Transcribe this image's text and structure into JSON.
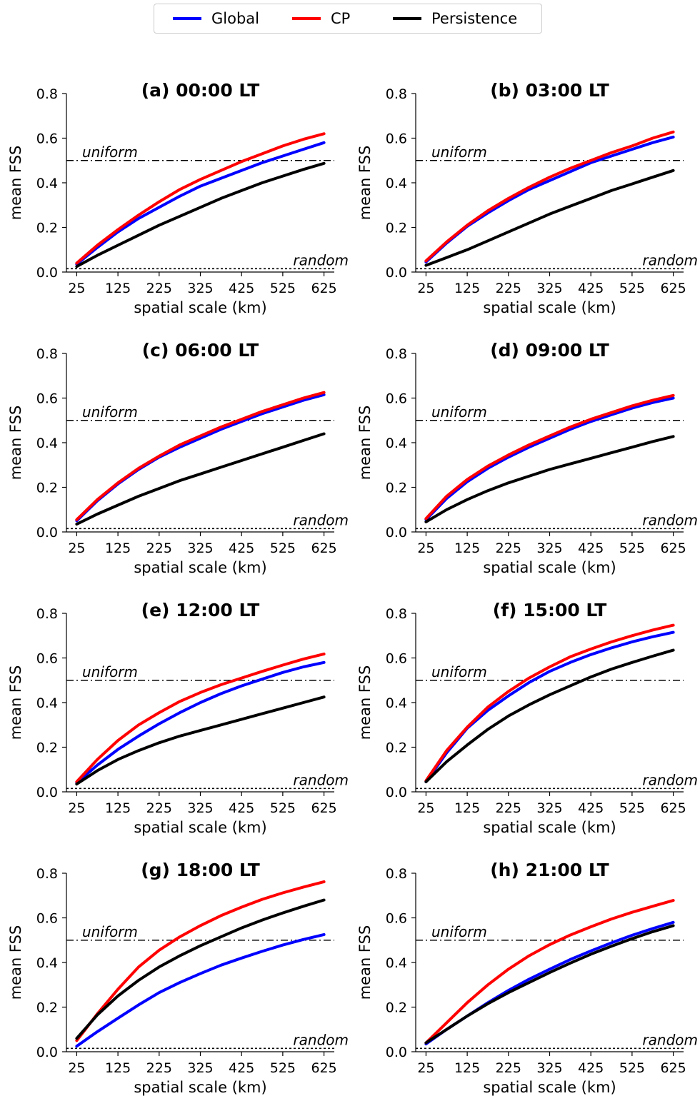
{
  "legend": [
    {
      "label": "Global",
      "color": "#0000ff"
    },
    {
      "label": "CP",
      "color": "#ff0000"
    },
    {
      "label": "Persistence",
      "color": "#000000"
    }
  ],
  "chart_data": [
    {
      "type": "line",
      "title": "(a) 00:00 LT",
      "xlabel": "spatial scale (km)",
      "ylabel": "mean FSS",
      "x": [
        25,
        75,
        125,
        175,
        225,
        275,
        325,
        375,
        425,
        475,
        525,
        575,
        625
      ],
      "xticks": [
        "25",
        "125",
        "225",
        "325",
        "425",
        "525",
        "625"
      ],
      "yticks": [
        "0.0",
        "0.2",
        "0.4",
        "0.6",
        "0.8"
      ],
      "ylim": [
        0,
        0.8
      ],
      "series": [
        {
          "name": "Global",
          "color": "#0000ff",
          "values": [
            0.035,
            0.11,
            0.18,
            0.24,
            0.29,
            0.34,
            0.385,
            0.42,
            0.455,
            0.49,
            0.52,
            0.55,
            0.58
          ]
        },
        {
          "name": "CP",
          "color": "#ff0000",
          "values": [
            0.04,
            0.12,
            0.19,
            0.255,
            0.315,
            0.37,
            0.415,
            0.455,
            0.495,
            0.53,
            0.565,
            0.595,
            0.62
          ]
        },
        {
          "name": "Persistence",
          "color": "#000000",
          "values": [
            0.025,
            0.075,
            0.12,
            0.165,
            0.21,
            0.25,
            0.29,
            0.33,
            0.365,
            0.4,
            0.43,
            0.46,
            0.487
          ]
        }
      ],
      "reference_lines": [
        {
          "label": "uniform",
          "y": 0.5,
          "style": "dashdot"
        },
        {
          "label": "random",
          "y": 0.015,
          "style": "dotted"
        }
      ]
    },
    {
      "type": "line",
      "title": "(b) 03:00 LT",
      "xlabel": "spatial scale (km)",
      "ylabel": "mean FSS",
      "x": [
        25,
        75,
        125,
        175,
        225,
        275,
        325,
        375,
        425,
        475,
        525,
        575,
        625
      ],
      "xticks": [
        "25",
        "125",
        "225",
        "325",
        "425",
        "525",
        "625"
      ],
      "yticks": [
        "0.0",
        "0.2",
        "0.4",
        "0.6",
        "0.8"
      ],
      "ylim": [
        0,
        0.8
      ],
      "series": [
        {
          "name": "Global",
          "color": "#0000ff",
          "values": [
            0.045,
            0.13,
            0.205,
            0.265,
            0.32,
            0.37,
            0.41,
            0.45,
            0.49,
            0.52,
            0.55,
            0.58,
            0.605
          ]
        },
        {
          "name": "CP",
          "color": "#ff0000",
          "values": [
            0.05,
            0.135,
            0.21,
            0.275,
            0.33,
            0.38,
            0.425,
            0.465,
            0.5,
            0.535,
            0.565,
            0.6,
            0.628
          ]
        },
        {
          "name": "Persistence",
          "color": "#000000",
          "values": [
            0.03,
            0.065,
            0.1,
            0.14,
            0.18,
            0.22,
            0.26,
            0.295,
            0.33,
            0.365,
            0.395,
            0.425,
            0.455
          ]
        }
      ],
      "reference_lines": [
        {
          "label": "uniform",
          "y": 0.5,
          "style": "dashdot"
        },
        {
          "label": "random",
          "y": 0.015,
          "style": "dotted"
        }
      ]
    },
    {
      "type": "line",
      "title": "(c) 06:00 LT",
      "xlabel": "spatial scale (km)",
      "ylabel": "mean FSS",
      "x": [
        25,
        75,
        125,
        175,
        225,
        275,
        325,
        375,
        425,
        475,
        525,
        575,
        625
      ],
      "xticks": [
        "25",
        "125",
        "225",
        "325",
        "425",
        "525",
        "625"
      ],
      "yticks": [
        "0.0",
        "0.2",
        "0.4",
        "0.6",
        "0.8"
      ],
      "ylim": [
        0,
        0.8
      ],
      "series": [
        {
          "name": "Global",
          "color": "#0000ff",
          "values": [
            0.05,
            0.14,
            0.215,
            0.28,
            0.335,
            0.38,
            0.42,
            0.46,
            0.495,
            0.53,
            0.56,
            0.59,
            0.615
          ]
        },
        {
          "name": "CP",
          "color": "#ff0000",
          "values": [
            0.055,
            0.145,
            0.22,
            0.285,
            0.34,
            0.39,
            0.43,
            0.47,
            0.505,
            0.54,
            0.57,
            0.6,
            0.625
          ]
        },
        {
          "name": "Persistence",
          "color": "#000000",
          "values": [
            0.035,
            0.08,
            0.12,
            0.16,
            0.195,
            0.23,
            0.26,
            0.29,
            0.32,
            0.35,
            0.38,
            0.41,
            0.44
          ]
        }
      ],
      "reference_lines": [
        {
          "label": "uniform",
          "y": 0.5,
          "style": "dashdot"
        },
        {
          "label": "random",
          "y": 0.015,
          "style": "dotted"
        }
      ]
    },
    {
      "type": "line",
      "title": "(d) 09:00 LT",
      "xlabel": "spatial scale (km)",
      "ylabel": "mean FSS",
      "x": [
        25,
        75,
        125,
        175,
        225,
        275,
        325,
        375,
        425,
        475,
        525,
        575,
        625
      ],
      "xticks": [
        "25",
        "125",
        "225",
        "325",
        "425",
        "525",
        "625"
      ],
      "yticks": [
        "0.0",
        "0.2",
        "0.4",
        "0.6",
        "0.8"
      ],
      "ylim": [
        0,
        0.8
      ],
      "series": [
        {
          "name": "Global",
          "color": "#0000ff",
          "values": [
            0.055,
            0.15,
            0.225,
            0.285,
            0.335,
            0.38,
            0.42,
            0.46,
            0.495,
            0.525,
            0.555,
            0.58,
            0.6
          ]
        },
        {
          "name": "CP",
          "color": "#ff0000",
          "values": [
            0.06,
            0.16,
            0.235,
            0.295,
            0.345,
            0.39,
            0.43,
            0.47,
            0.505,
            0.535,
            0.565,
            0.59,
            0.612
          ]
        },
        {
          "name": "Persistence",
          "color": "#000000",
          "values": [
            0.045,
            0.1,
            0.145,
            0.185,
            0.22,
            0.25,
            0.28,
            0.305,
            0.33,
            0.355,
            0.38,
            0.405,
            0.428
          ]
        }
      ],
      "reference_lines": [
        {
          "label": "uniform",
          "y": 0.5,
          "style": "dashdot"
        },
        {
          "label": "random",
          "y": 0.015,
          "style": "dotted"
        }
      ]
    },
    {
      "type": "line",
      "title": "(e) 12:00 LT",
      "xlabel": "spatial scale (km)",
      "ylabel": "mean FSS",
      "x": [
        25,
        75,
        125,
        175,
        225,
        275,
        325,
        375,
        425,
        475,
        525,
        575,
        625
      ],
      "xticks": [
        "25",
        "125",
        "225",
        "325",
        "425",
        "525",
        "625"
      ],
      "yticks": [
        "0.0",
        "0.2",
        "0.4",
        "0.6",
        "0.8"
      ],
      "ylim": [
        0,
        0.8
      ],
      "series": [
        {
          "name": "Global",
          "color": "#0000ff",
          "values": [
            0.04,
            0.12,
            0.19,
            0.25,
            0.305,
            0.355,
            0.4,
            0.44,
            0.475,
            0.505,
            0.535,
            0.56,
            0.58
          ]
        },
        {
          "name": "CP",
          "color": "#ff0000",
          "values": [
            0.045,
            0.145,
            0.23,
            0.3,
            0.355,
            0.405,
            0.445,
            0.48,
            0.51,
            0.54,
            0.568,
            0.595,
            0.618
          ]
        },
        {
          "name": "Persistence",
          "color": "#000000",
          "values": [
            0.035,
            0.095,
            0.145,
            0.185,
            0.22,
            0.25,
            0.275,
            0.3,
            0.325,
            0.35,
            0.375,
            0.4,
            0.425
          ]
        }
      ],
      "reference_lines": [
        {
          "label": "uniform",
          "y": 0.5,
          "style": "dashdot"
        },
        {
          "label": "random",
          "y": 0.015,
          "style": "dotted"
        }
      ]
    },
    {
      "type": "line",
      "title": "(f) 15:00 LT",
      "xlabel": "spatial scale (km)",
      "ylabel": "mean FSS",
      "x": [
        25,
        75,
        125,
        175,
        225,
        275,
        325,
        375,
        425,
        475,
        525,
        575,
        625
      ],
      "xticks": [
        "25",
        "125",
        "225",
        "325",
        "425",
        "525",
        "625"
      ],
      "yticks": [
        "0.0",
        "0.2",
        "0.4",
        "0.6",
        "0.8"
      ],
      "ylim": [
        0,
        0.8
      ],
      "series": [
        {
          "name": "Global",
          "color": "#0000ff",
          "values": [
            0.045,
            0.175,
            0.285,
            0.365,
            0.43,
            0.49,
            0.54,
            0.58,
            0.615,
            0.645,
            0.672,
            0.695,
            0.715
          ]
        },
        {
          "name": "CP",
          "color": "#ff0000",
          "values": [
            0.05,
            0.185,
            0.29,
            0.38,
            0.45,
            0.51,
            0.56,
            0.605,
            0.64,
            0.672,
            0.7,
            0.725,
            0.747
          ]
        },
        {
          "name": "Persistence",
          "color": "#000000",
          "values": [
            0.045,
            0.135,
            0.21,
            0.28,
            0.34,
            0.39,
            0.435,
            0.475,
            0.515,
            0.55,
            0.58,
            0.608,
            0.635
          ]
        }
      ],
      "reference_lines": [
        {
          "label": "uniform",
          "y": 0.5,
          "style": "dashdot"
        },
        {
          "label": "random",
          "y": 0.015,
          "style": "dotted"
        }
      ]
    },
    {
      "type": "line",
      "title": "(g) 18:00 LT",
      "xlabel": "spatial scale (km)",
      "ylabel": "mean FSS",
      "x": [
        25,
        75,
        125,
        175,
        225,
        275,
        325,
        375,
        425,
        475,
        525,
        575,
        625
      ],
      "xticks": [
        "25",
        "125",
        "225",
        "325",
        "425",
        "525",
        "625"
      ],
      "yticks": [
        "0.0",
        "0.2",
        "0.4",
        "0.6",
        "0.8"
      ],
      "ylim": [
        0,
        0.8
      ],
      "series": [
        {
          "name": "Global",
          "color": "#0000ff",
          "values": [
            0.025,
            0.09,
            0.15,
            0.21,
            0.265,
            0.31,
            0.35,
            0.388,
            0.42,
            0.45,
            0.478,
            0.503,
            0.525
          ]
        },
        {
          "name": "CP",
          "color": "#ff0000",
          "values": [
            0.05,
            0.17,
            0.28,
            0.38,
            0.455,
            0.515,
            0.565,
            0.61,
            0.648,
            0.683,
            0.712,
            0.738,
            0.762
          ]
        },
        {
          "name": "Persistence",
          "color": "#000000",
          "values": [
            0.06,
            0.165,
            0.25,
            0.32,
            0.38,
            0.43,
            0.475,
            0.515,
            0.555,
            0.59,
            0.622,
            0.652,
            0.68
          ]
        }
      ],
      "reference_lines": [
        {
          "label": "uniform",
          "y": 0.5,
          "style": "dashdot"
        },
        {
          "label": "random",
          "y": 0.015,
          "style": "dotted"
        }
      ]
    },
    {
      "type": "line",
      "title": "(h) 21:00 LT",
      "xlabel": "spatial scale (km)",
      "ylabel": "mean FSS",
      "x": [
        25,
        75,
        125,
        175,
        225,
        275,
        325,
        375,
        425,
        475,
        525,
        575,
        625
      ],
      "xticks": [
        "25",
        "125",
        "225",
        "325",
        "425",
        "525",
        "625"
      ],
      "yticks": [
        "0.0",
        "0.2",
        "0.4",
        "0.6",
        "0.8"
      ],
      "ylim": [
        0,
        0.8
      ],
      "series": [
        {
          "name": "Global",
          "color": "#0000ff",
          "values": [
            0.035,
            0.1,
            0.16,
            0.22,
            0.275,
            0.325,
            0.37,
            0.413,
            0.452,
            0.488,
            0.522,
            0.552,
            0.58
          ]
        },
        {
          "name": "CP",
          "color": "#ff0000",
          "values": [
            0.04,
            0.13,
            0.22,
            0.3,
            0.37,
            0.43,
            0.48,
            0.523,
            0.56,
            0.595,
            0.625,
            0.652,
            0.678
          ]
        },
        {
          "name": "Persistence",
          "color": "#000000",
          "values": [
            0.04,
            0.1,
            0.16,
            0.215,
            0.265,
            0.31,
            0.355,
            0.397,
            0.437,
            0.473,
            0.507,
            0.538,
            0.565
          ]
        }
      ],
      "reference_lines": [
        {
          "label": "uniform",
          "y": 0.5,
          "style": "dashdot"
        },
        {
          "label": "random",
          "y": 0.015,
          "style": "dotted"
        }
      ]
    }
  ]
}
